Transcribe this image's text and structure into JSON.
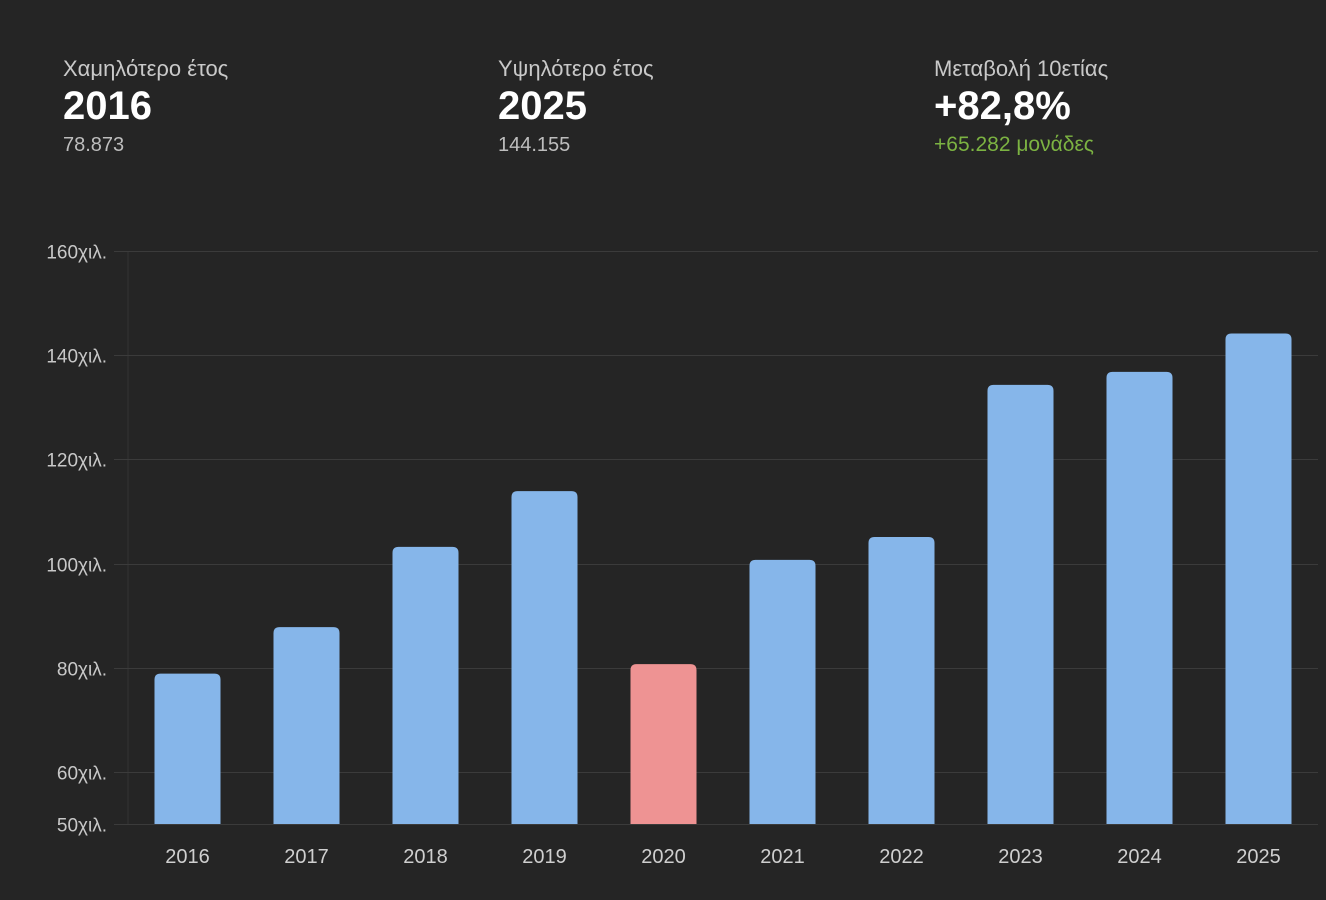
{
  "stats": [
    {
      "label": "Χαμηλότερο έτος",
      "value": "2016",
      "sub": "78.873"
    },
    {
      "label": "Υψηλότερο έτος",
      "value": "2025",
      "sub": "144.155"
    },
    {
      "label": "Μεταβολή 10ετίας",
      "value": "+82,8%",
      "sub": "+65.282 μονάδες"
    }
  ],
  "colors": {
    "background": "#252525",
    "bar": "#86b6ea",
    "bar_highlight": "#ee9393",
    "positive": "#7cb342",
    "gridline": "#3b3b3b",
    "axis": "#333333"
  },
  "chart_data": {
    "type": "bar",
    "categories": [
      "2016",
      "2017",
      "2018",
      "2019",
      "2020",
      "2021",
      "2022",
      "2023",
      "2024",
      "2025"
    ],
    "values": [
      78873,
      87800,
      103200,
      113900,
      80700,
      100700,
      105100,
      134300,
      136800,
      144155
    ],
    "highlighted_category": "2020",
    "ylim": [
      50000,
      160000
    ],
    "yticks": [
      50000,
      60000,
      80000,
      100000,
      120000,
      140000,
      160000
    ],
    "ytick_labels": [
      "50χιλ.",
      "60χιλ.",
      "80χιλ.",
      "100χιλ.",
      "120χιλ.",
      "140χιλ.",
      "160χιλ."
    ],
    "grid": true
  }
}
